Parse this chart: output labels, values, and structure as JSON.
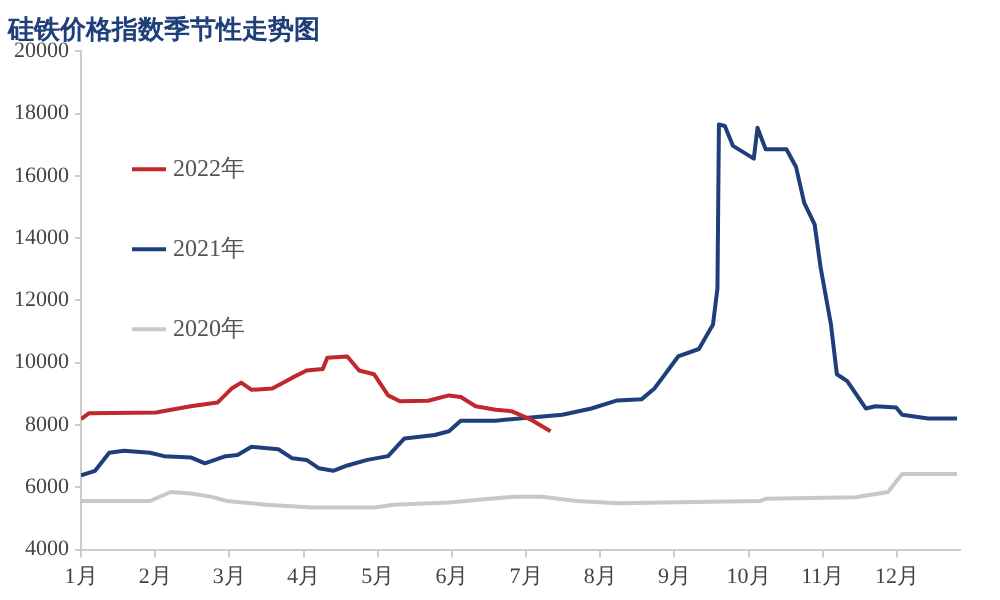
{
  "chart_data": {
    "type": "line",
    "title": "硅铁价格指数季节性走势图",
    "legend": "top",
    "grid": false,
    "marker": "none",
    "xlim": [
      1,
      12.85
    ],
    "xticks": [
      {
        "value": 1,
        "label": "1月"
      },
      {
        "value": 2,
        "label": "2月"
      },
      {
        "value": 3,
        "label": "3月"
      },
      {
        "value": 4,
        "label": "4月"
      },
      {
        "value": 5,
        "label": "5月"
      },
      {
        "value": 6,
        "label": "6月"
      },
      {
        "value": 7,
        "label": "7月"
      },
      {
        "value": 8,
        "label": "8月"
      },
      {
        "value": 9,
        "label": "9月"
      },
      {
        "value": 10,
        "label": "10月"
      },
      {
        "value": 11,
        "label": "11月"
      },
      {
        "value": 12,
        "label": "12月"
      }
    ],
    "ylim": [
      4000,
      20000
    ],
    "yticks": [
      4000,
      6000,
      8000,
      10000,
      12000,
      14000,
      16000,
      18000,
      20000
    ],
    "series": [
      {
        "name": "2022年",
        "color": "#c0282d",
        "x": [
          1.0,
          1.11,
          2.01,
          2.48,
          2.84,
          3.03,
          3.16,
          3.3,
          3.58,
          3.85,
          4.04,
          4.26,
          4.32,
          4.59,
          4.75,
          4.95,
          5.14,
          5.3,
          5.68,
          5.96,
          6.12,
          6.32,
          6.59,
          6.81,
          7.05,
          7.33
        ],
        "values": [
          8190,
          8380,
          8400,
          8600,
          8720,
          9170,
          9360,
          9130,
          9170,
          9520,
          9750,
          9800,
          10160,
          10200,
          9750,
          9630,
          8950,
          8760,
          8780,
          8950,
          8900,
          8600,
          8490,
          8440,
          8190,
          7800
        ]
      },
      {
        "name": "2021年",
        "color": "#1f3f7a",
        "x": [
          1.0,
          1.19,
          1.38,
          1.58,
          1.93,
          2.12,
          2.48,
          2.67,
          2.95,
          3.11,
          3.3,
          3.66,
          3.85,
          4.04,
          4.21,
          4.4,
          4.59,
          4.86,
          5.14,
          5.36,
          5.77,
          5.96,
          6.12,
          6.59,
          7.49,
          7.88,
          8.23,
          8.56,
          8.73,
          8.84,
          9.05,
          9.33,
          9.52,
          9.58,
          9.6,
          9.68,
          9.79,
          10.07,
          10.12,
          10.23,
          10.51,
          10.64,
          10.75,
          10.89,
          10.97,
          11.11,
          11.19,
          11.33,
          11.58,
          11.71,
          11.99,
          12.07,
          12.42,
          12.81
        ],
        "values": [
          6380,
          6530,
          7110,
          7170,
          7110,
          7000,
          6960,
          6770,
          7000,
          7040,
          7300,
          7220,
          6930,
          6880,
          6610,
          6530,
          6700,
          6880,
          7000,
          7570,
          7680,
          7800,
          8140,
          8140,
          8330,
          8530,
          8790,
          8830,
          9170,
          9520,
          10200,
          10440,
          11230,
          12380,
          17650,
          17600,
          16960,
          16550,
          17540,
          16850,
          16850,
          16280,
          15130,
          14440,
          13070,
          11230,
          9630,
          9410,
          8530,
          8600,
          8560,
          8330,
          8210,
          8210
        ]
      },
      {
        "name": "2020年",
        "color": "#c8c8c8",
        "x": [
          1.0,
          1.93,
          2.21,
          2.48,
          2.75,
          2.97,
          3.49,
          4.12,
          4.95,
          5.22,
          5.96,
          6.51,
          6.86,
          7.22,
          7.68,
          8.23,
          8.86,
          10.15,
          10.23,
          11.44,
          11.88,
          12.07,
          12.81
        ],
        "values": [
          5560,
          5560,
          5850,
          5800,
          5700,
          5560,
          5440,
          5350,
          5350,
          5440,
          5510,
          5630,
          5700,
          5700,
          5560,
          5490,
          5510,
          5560,
          5630,
          5680,
          5850,
          6430,
          6430
        ]
      }
    ]
  }
}
